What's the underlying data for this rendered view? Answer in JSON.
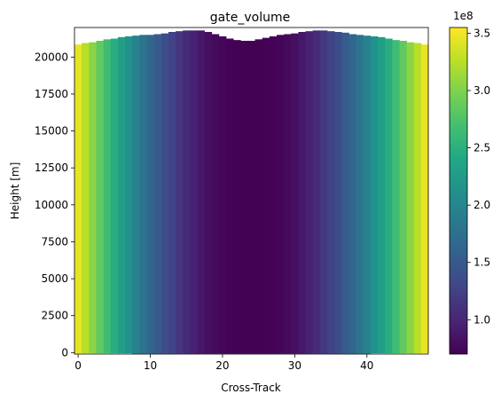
{
  "chart_data": {
    "type": "heatmap",
    "title": "gate_volume",
    "xlabel": "Cross-Track",
    "ylabel": "Height [m]",
    "xlim": [
      -0.5,
      48.5
    ],
    "ylim": [
      -100,
      22000
    ],
    "x_ticks": [
      0,
      10,
      20,
      30,
      40
    ],
    "x_tick_labels": [
      "0",
      "10",
      "20",
      "30",
      "40"
    ],
    "y_ticks": [
      0,
      2500,
      5000,
      7500,
      10000,
      12500,
      15000,
      17500,
      20000
    ],
    "y_tick_labels": [
      "0",
      "2500",
      "5000",
      "7500",
      "10000",
      "12500",
      "15000",
      "17500",
      "20000"
    ],
    "columns": [
      0,
      1,
      2,
      3,
      4,
      5,
      6,
      7,
      8,
      9,
      10,
      11,
      12,
      13,
      14,
      15,
      16,
      17,
      18,
      19,
      20,
      21,
      22,
      23,
      24,
      25,
      26,
      27,
      28,
      29,
      30,
      31,
      32,
      33,
      34,
      35,
      36,
      37,
      38,
      39,
      40,
      41,
      42,
      43,
      44,
      45,
      46,
      47,
      48
    ],
    "column_bottom_height": [
      -50,
      -50,
      -50,
      -50,
      -50,
      -50,
      -50,
      -50,
      -70,
      -70,
      -70,
      -70,
      -70,
      -70,
      -70,
      -70,
      -70,
      -70,
      -70,
      -70,
      -70,
      -70,
      -70,
      -70,
      -70,
      -70,
      -70,
      -70,
      -70,
      -70,
      -70,
      -70,
      -70,
      -70,
      -70,
      -70,
      -70,
      -70,
      -70,
      -70,
      -70,
      -50,
      -50,
      -50,
      -50,
      -50,
      -50,
      -50,
      -50
    ],
    "column_top_height": [
      20850,
      20950,
      21000,
      21100,
      21200,
      21250,
      21350,
      21400,
      21450,
      21500,
      21500,
      21550,
      21600,
      21700,
      21750,
      21800,
      21800,
      21800,
      21700,
      21550,
      21400,
      21250,
      21150,
      21100,
      21100,
      21200,
      21300,
      21400,
      21500,
      21550,
      21600,
      21700,
      21750,
      21800,
      21800,
      21750,
      21700,
      21650,
      21550,
      21500,
      21450,
      21400,
      21350,
      21250,
      21150,
      21100,
      21000,
      20950,
      20850
    ],
    "gate_volume_values": [
      3.45,
      3.25,
      3.05,
      2.85,
      2.66,
      2.47,
      2.29,
      2.12,
      1.95,
      1.8,
      1.65,
      1.51,
      1.38,
      1.26,
      1.15,
      1.05,
      0.96,
      0.88,
      0.82,
      0.77,
      0.74,
      0.72,
      0.71,
      0.71,
      0.71,
      0.71,
      0.71,
      0.72,
      0.74,
      0.77,
      0.82,
      0.88,
      0.96,
      1.05,
      1.15,
      1.26,
      1.38,
      1.51,
      1.65,
      1.8,
      1.95,
      2.12,
      2.29,
      2.47,
      2.66,
      2.85,
      3.05,
      3.25,
      3.45
    ],
    "colorbar": {
      "colormap": "viridis",
      "range": [
        0.7,
        3.55
      ],
      "ticks": [
        1.0,
        1.5,
        2.0,
        2.5,
        3.0,
        3.5
      ],
      "tick_labels": [
        "1.0",
        "1.5",
        "2.0",
        "2.5",
        "3.0",
        "3.5"
      ],
      "offset_label": "1e8"
    },
    "grid": false
  }
}
